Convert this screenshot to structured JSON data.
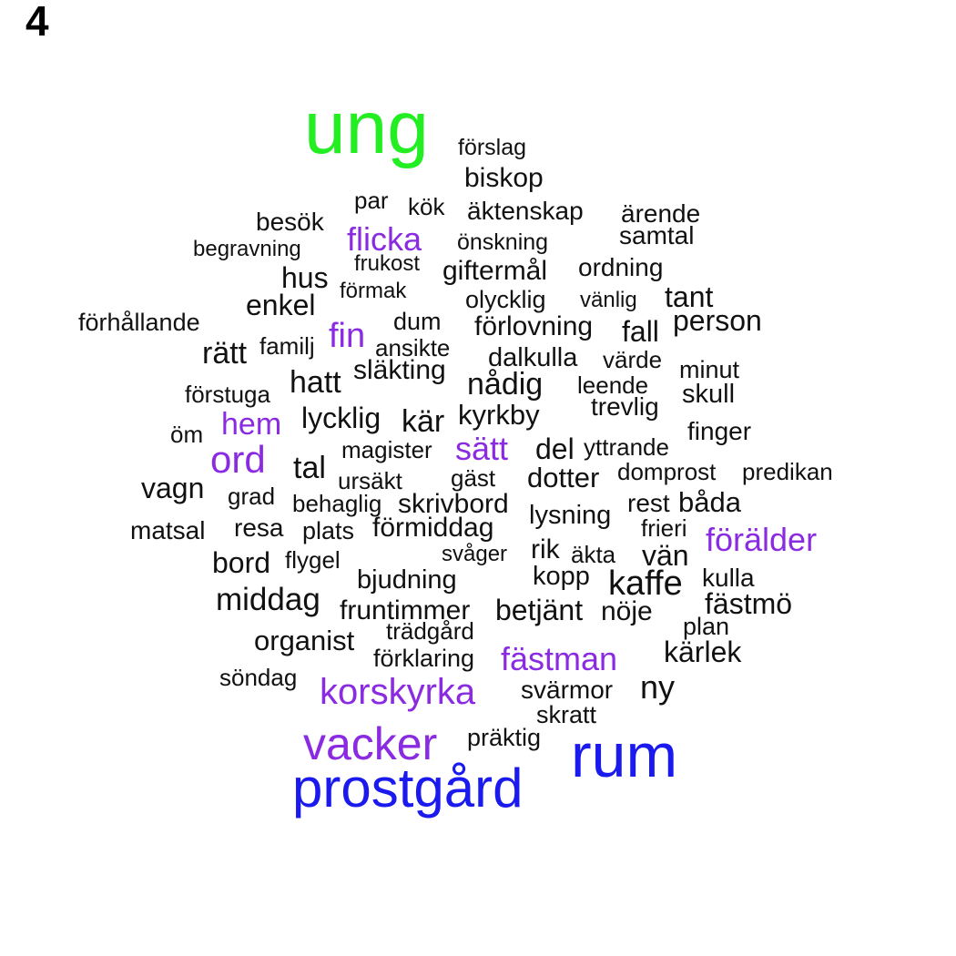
{
  "panel_label": "4",
  "colors": {
    "green": "#22ee22",
    "blue": "#1a1aee",
    "purple": "#8a2be2",
    "black": "#111111"
  },
  "words": [
    {
      "text": "ung",
      "color": "green"
    },
    {
      "text": "rum",
      "color": "blue"
    },
    {
      "text": "prostgård",
      "color": "blue"
    },
    {
      "text": "vacker",
      "color": "purple"
    },
    {
      "text": "korskyrka",
      "color": "purple"
    },
    {
      "text": "fästman",
      "color": "purple"
    },
    {
      "text": "förälder",
      "color": "purple"
    },
    {
      "text": "ord",
      "color": "purple"
    },
    {
      "text": "sätt",
      "color": "purple"
    },
    {
      "text": "hem",
      "color": "purple"
    },
    {
      "text": "fin",
      "color": "purple"
    },
    {
      "text": "flicka",
      "color": "purple"
    },
    {
      "text": "förslag",
      "color": "black"
    },
    {
      "text": "biskop",
      "color": "black"
    },
    {
      "text": "par",
      "color": "black"
    },
    {
      "text": "kök",
      "color": "black"
    },
    {
      "text": "äktenskap",
      "color": "black"
    },
    {
      "text": "ärende",
      "color": "black"
    },
    {
      "text": "besök",
      "color": "black"
    },
    {
      "text": "samtal",
      "color": "black"
    },
    {
      "text": "begravning",
      "color": "black"
    },
    {
      "text": "önskning",
      "color": "black"
    },
    {
      "text": "frukost",
      "color": "black"
    },
    {
      "text": "giftermål",
      "color": "black"
    },
    {
      "text": "ordning",
      "color": "black"
    },
    {
      "text": "hus",
      "color": "black"
    },
    {
      "text": "förmak",
      "color": "black"
    },
    {
      "text": "tant",
      "color": "black"
    },
    {
      "text": "enkel",
      "color": "black"
    },
    {
      "text": "olycklig",
      "color": "black"
    },
    {
      "text": "vänlig",
      "color": "black"
    },
    {
      "text": "person",
      "color": "black"
    },
    {
      "text": "förhållande",
      "color": "black"
    },
    {
      "text": "dum",
      "color": "black"
    },
    {
      "text": "förlovning",
      "color": "black"
    },
    {
      "text": "fall",
      "color": "black"
    },
    {
      "text": "familj",
      "color": "black"
    },
    {
      "text": "ansikte",
      "color": "black"
    },
    {
      "text": "rätt",
      "color": "black"
    },
    {
      "text": "dalkulla",
      "color": "black"
    },
    {
      "text": "värde",
      "color": "black"
    },
    {
      "text": "minut",
      "color": "black"
    },
    {
      "text": "släkting",
      "color": "black"
    },
    {
      "text": "hatt",
      "color": "black"
    },
    {
      "text": "nådig",
      "color": "black"
    },
    {
      "text": "leende",
      "color": "black"
    },
    {
      "text": "skull",
      "color": "black"
    },
    {
      "text": "förstuga",
      "color": "black"
    },
    {
      "text": "trevlig",
      "color": "black"
    },
    {
      "text": "lycklig",
      "color": "black"
    },
    {
      "text": "kär",
      "color": "black"
    },
    {
      "text": "kyrkby",
      "color": "black"
    },
    {
      "text": "öm",
      "color": "black"
    },
    {
      "text": "finger",
      "color": "black"
    },
    {
      "text": "magister",
      "color": "black"
    },
    {
      "text": "del",
      "color": "black"
    },
    {
      "text": "yttrande",
      "color": "black"
    },
    {
      "text": "tal",
      "color": "black"
    },
    {
      "text": "ursäkt",
      "color": "black"
    },
    {
      "text": "gäst",
      "color": "black"
    },
    {
      "text": "dotter",
      "color": "black"
    },
    {
      "text": "domprost",
      "color": "black"
    },
    {
      "text": "predikan",
      "color": "black"
    },
    {
      "text": "vagn",
      "color": "black"
    },
    {
      "text": "grad",
      "color": "black"
    },
    {
      "text": "behaglig",
      "color": "black"
    },
    {
      "text": "skrivbord",
      "color": "black"
    },
    {
      "text": "rest",
      "color": "black"
    },
    {
      "text": "båda",
      "color": "black"
    },
    {
      "text": "lysning",
      "color": "black"
    },
    {
      "text": "matsal",
      "color": "black"
    },
    {
      "text": "resa",
      "color": "black"
    },
    {
      "text": "plats",
      "color": "black"
    },
    {
      "text": "förmiddag",
      "color": "black"
    },
    {
      "text": "frieri",
      "color": "black"
    },
    {
      "text": "svåger",
      "color": "black"
    },
    {
      "text": "rik",
      "color": "black"
    },
    {
      "text": "äkta",
      "color": "black"
    },
    {
      "text": "vän",
      "color": "black"
    },
    {
      "text": "bord",
      "color": "black"
    },
    {
      "text": "flygel",
      "color": "black"
    },
    {
      "text": "kopp",
      "color": "black"
    },
    {
      "text": "kulla",
      "color": "black"
    },
    {
      "text": "bjudning",
      "color": "black"
    },
    {
      "text": "kaffe",
      "color": "black"
    },
    {
      "text": "middag",
      "color": "black"
    },
    {
      "text": "fästmö",
      "color": "black"
    },
    {
      "text": "fruntimmer",
      "color": "black"
    },
    {
      "text": "betjänt",
      "color": "black"
    },
    {
      "text": "nöje",
      "color": "black"
    },
    {
      "text": "plan",
      "color": "black"
    },
    {
      "text": "trädgård",
      "color": "black"
    },
    {
      "text": "organist",
      "color": "black"
    },
    {
      "text": "kärlek",
      "color": "black"
    },
    {
      "text": "förklaring",
      "color": "black"
    },
    {
      "text": "söndag",
      "color": "black"
    },
    {
      "text": "svärmor",
      "color": "black"
    },
    {
      "text": "ny",
      "color": "black"
    },
    {
      "text": "skratt",
      "color": "black"
    },
    {
      "text": "präktig",
      "color": "black"
    }
  ]
}
